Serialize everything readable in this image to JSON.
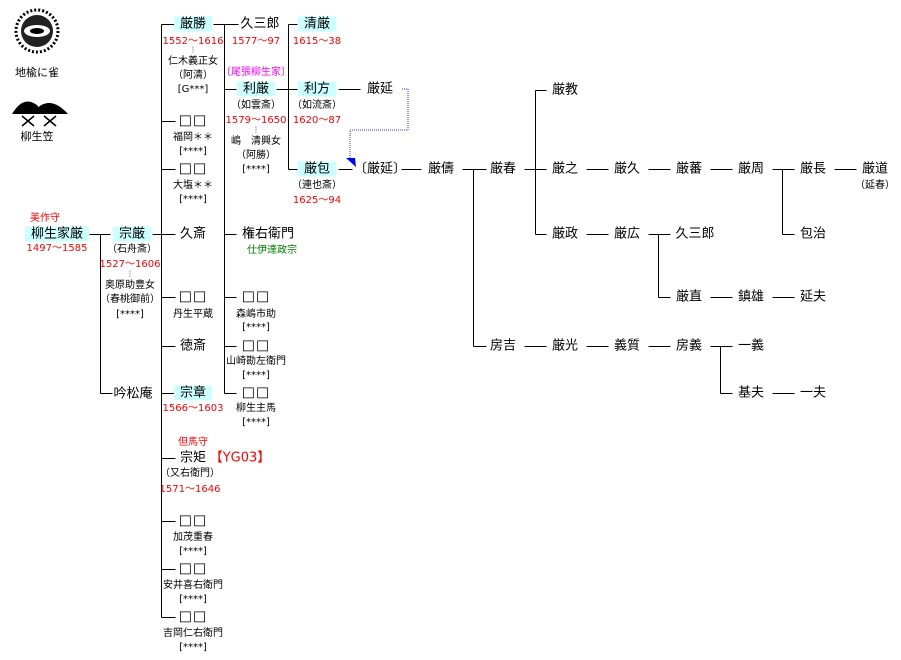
{
  "crests": {
    "crest1_label": "地楡に雀",
    "crest2_label": "柳生笠"
  },
  "ieyoshi": {
    "title": "美作守",
    "name": "柳生家厳",
    "dates": "1497〜1585"
  },
  "muneyoshi": {
    "name": "宗厳",
    "alias": "（石舟斎）",
    "dates": "1527〜1606",
    "dots": "⁝",
    "wife": "奥原助豊女",
    "wife_alias": "（春桃御前）",
    "code": "[****]"
  },
  "ginshoan": {
    "name": "吟松庵"
  },
  "gen2": {
    "yoshikatsu": {
      "name": "厳勝",
      "dates": "1552〜1616",
      "dots": "⁝",
      "wife": "仁木義正女",
      "wife_alias": "（阿清）",
      "code": "[G***]"
    },
    "d1": {
      "name": "□□",
      "spouse": "福岡＊＊",
      "code": "[****]"
    },
    "d2": {
      "name": "□□",
      "spouse": "大塩＊＊",
      "code": "[****]"
    },
    "kyusai": {
      "name": "久斎"
    },
    "d3": {
      "name": "□□",
      "spouse": "丹生平蔵"
    },
    "tokusai": {
      "name": "徳斎"
    },
    "muneaki": {
      "name": "宗章",
      "dates": "1566〜1603"
    },
    "munenori": {
      "title": "但馬守",
      "name": "宗矩",
      "code": "【YG03】",
      "alias": "（又右衛門）",
      "dates": "1571〜1646"
    },
    "d4": {
      "name": "□□",
      "spouse": "加茂重春",
      "code": "[****]"
    },
    "d5": {
      "name": "□□",
      "spouse": "安井喜右衛門",
      "code": "[****]"
    },
    "d6": {
      "name": "□□",
      "spouse": "吉岡仁右衛門",
      "code": "[****]"
    }
  },
  "gen3": {
    "kyuzaburo": {
      "name": "久三郎",
      "dates": "1577〜97"
    },
    "owari_label": "〔尾張柳生家〕",
    "toshiyoshi": {
      "name": "利厳",
      "alias": "（如雲斎）",
      "dates": "1579〜1650",
      "dots": "⁝",
      "wife": "嶋　清興女",
      "wife_alias": "（阿勝）",
      "code": "[****]"
    },
    "gonemon": {
      "name": "権右衛門",
      "note": "仕伊達政宗"
    },
    "d7": {
      "name": "□□",
      "spouse": "森嶋市助",
      "code": "[****]"
    },
    "d8": {
      "name": "□□",
      "spouse": "山崎勘左衛門",
      "code": "[****]"
    },
    "d9": {
      "name": "□□",
      "spouse": "柳生主馬",
      "code": "[****]"
    }
  },
  "gen4": {
    "kiyoyoshi": {
      "name": "清厳",
      "dates": "1615〜38"
    },
    "toshikata": {
      "name": "利方",
      "alias": "（如流斎）",
      "dates": "1620〜87"
    },
    "toshikane": {
      "name": "厳包",
      "alias": "（連也斎）",
      "dates": "1625〜94"
    },
    "toshinobu": "厳延",
    "toshinobu_adopted": "〔厳延〕"
  },
  "later": {
    "toshitomo": "厳儔",
    "toshiharu": "厳春",
    "fusayoshi": "房吉",
    "toshinori": "厳教",
    "toshiyuki": "厳之",
    "toshimasa": "厳政",
    "toshihisa": "厳久",
    "toshihiro": "厳広",
    "toshishige": "厳蕃",
    "kyuzaburo2": "久三郎",
    "toshinao": "厳直",
    "toshichika": "厳周",
    "shizuo": "鎮雄",
    "nobuo": "延夫",
    "toshinaga": "厳長",
    "kaneharu": "包治",
    "toshimichi": "厳道",
    "toshimichi_alias": "（延春）",
    "toshimitsu": "厳光",
    "yoshitada": "義質",
    "fusayoshi2": "房義",
    "kazuyoshi": "一義",
    "motoo": "基夫",
    "kazuo": "一夫"
  },
  "colors": {
    "highlight": "#ccffff",
    "dates": "#ff0000",
    "note": "#008000",
    "branch": "#ff00ff",
    "adoption_arrow": "#0000ff"
  }
}
